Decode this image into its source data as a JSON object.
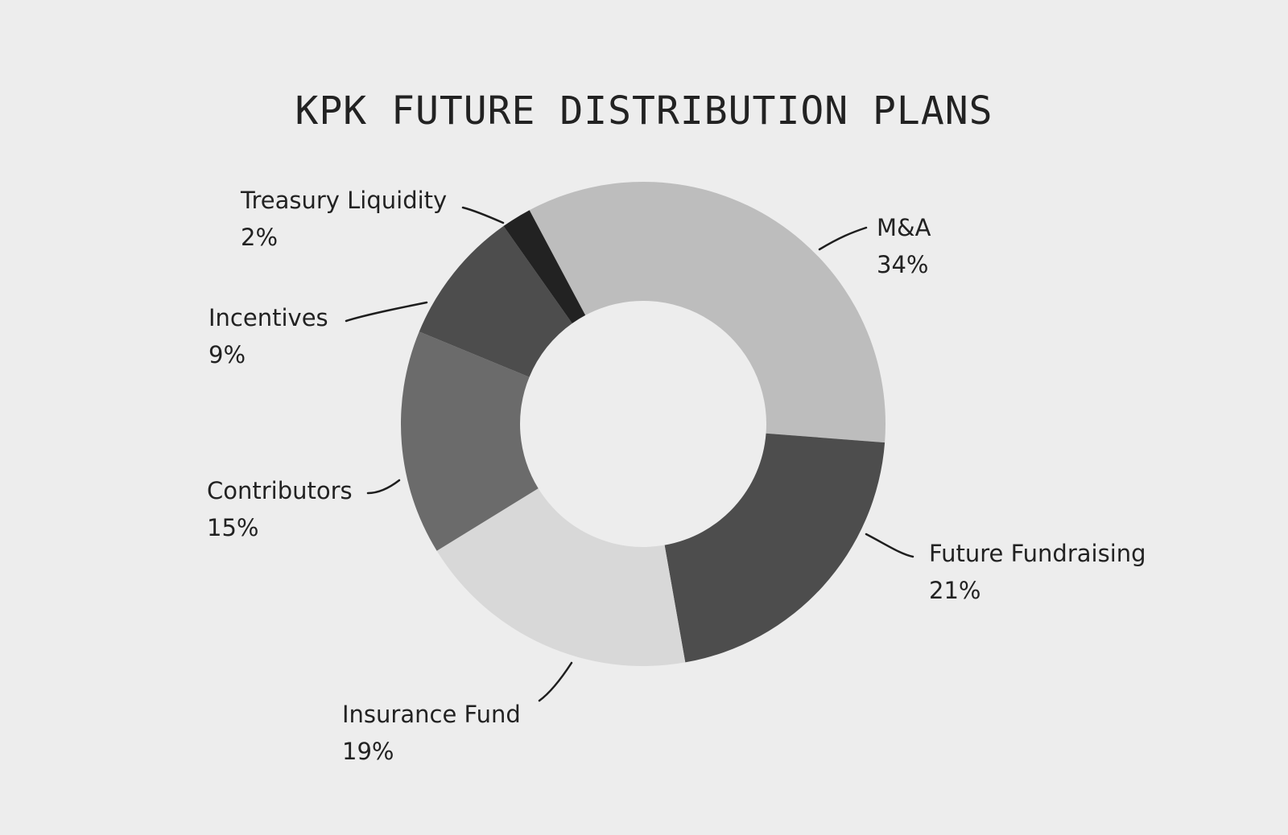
{
  "chart_data": {
    "type": "pie",
    "variant": "donut",
    "title": "KPK FUTURE DISTRIBUTION PLANS",
    "start_angle_deg": -28,
    "direction": "clockwise",
    "slices": [
      {
        "label": "M&A",
        "value": 34,
        "value_label": "34%",
        "color": "#bdbdbd"
      },
      {
        "label": "Future Fundraising",
        "value": 21,
        "value_label": "21%",
        "color": "#4d4d4d"
      },
      {
        "label": "Insurance Fund",
        "value": 19,
        "value_label": "19%",
        "color": "#d8d8d8"
      },
      {
        "label": "Contributors",
        "value": 15,
        "value_label": "15%",
        "color": "#6b6b6b"
      },
      {
        "label": "Incentives",
        "value": 9,
        "value_label": "9%",
        "color": "#4d4d4d"
      },
      {
        "label": "Treasury Liquidity",
        "value": 2,
        "value_label": "2%",
        "color": "#222222"
      }
    ],
    "colors": {
      "background": "#ededed",
      "text": "#222222",
      "leader_line": "#1e1e1e"
    }
  }
}
